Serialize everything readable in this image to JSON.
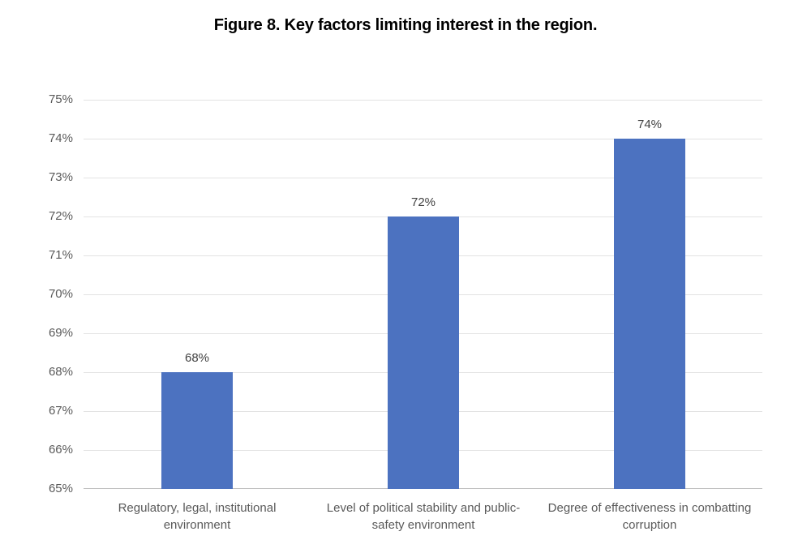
{
  "figure": {
    "title": "Figure 8. Key factors limiting interest in the region."
  },
  "chart_data": {
    "type": "bar",
    "title": "Figure 8. Key factors limiting interest in the region.",
    "categories": [
      "Regulatory, legal, institutional environment",
      "Level of political stability and public-safety environment",
      "Degree of effectiveness in combatting corruption"
    ],
    "category_lines": [
      [
        "Regulatory, legal, institutional",
        "environment"
      ],
      [
        "Level of political stability and public-",
        "safety environment"
      ],
      [
        "Degree of effectiveness in combatting",
        "corruption"
      ]
    ],
    "values": [
      68,
      72,
      74
    ],
    "data_labels": [
      "68%",
      "72%",
      "74%"
    ],
    "xlabel": "",
    "ylabel": "",
    "ylim": [
      65,
      75
    ],
    "y_tick_step": 1,
    "y_tick_labels": [
      "75%",
      "74%",
      "73%",
      "72%",
      "71%",
      "70%",
      "69%",
      "68%",
      "67%",
      "66%",
      "65%"
    ],
    "grid": true,
    "legend": false,
    "colors": {
      "bar": "#4c72c0",
      "gridline": "#e3e3e3",
      "axis_line": "#bfbfbf",
      "tick_label": "#595959",
      "category_label": "#595959",
      "data_label": "#404040",
      "title": "#000000",
      "background": "#ffffff"
    }
  }
}
